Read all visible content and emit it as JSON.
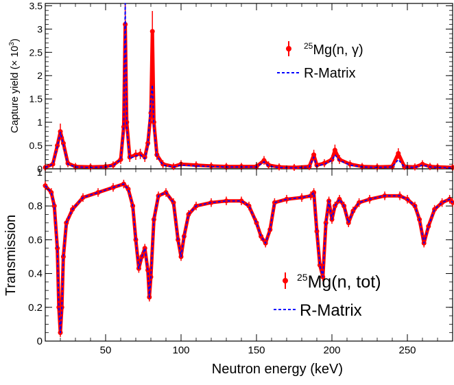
{
  "colors": {
    "data": "#ff0000",
    "fit": "#0000ff",
    "axis": "#000000"
  },
  "xaxis": {
    "label": "Neutron energy (keV)",
    "range": [
      10,
      280
    ],
    "ticks": [
      50,
      100,
      150,
      200,
      250
    ]
  },
  "legend_data_icon": "red-circle-with-error-bar",
  "legend_fit_icon": "blue-dashed-line",
  "chart_data": [
    {
      "type": "line",
      "ylabel_main": "Capture yield (",
      "ylabel_times": "×",
      "ylabel_base": "10",
      "ylabel_exp": "3",
      "ylabel_close": ")",
      "ylim": [
        0,
        3.55
      ],
      "yticks": [
        "0",
        "0.5",
        "1",
        "1.5",
        "2",
        "2.5",
        "3",
        "3.5"
      ],
      "legend_position": "top-right",
      "legend": [
        {
          "mass": "25",
          "label": "Mg(n, γ)"
        },
        {
          "label": "R-Matrix"
        }
      ],
      "series": [
        {
          "style": "markers",
          "x": [
            10,
            15,
            18,
            20,
            22,
            25,
            30,
            40,
            50,
            55,
            60,
            62,
            63,
            64,
            66,
            70,
            73,
            76,
            78,
            80,
            81,
            82,
            84,
            88,
            95,
            100,
            110,
            120,
            130,
            140,
            150,
            155,
            158,
            165,
            175,
            185,
            188,
            190,
            195,
            200,
            202,
            205,
            212,
            220,
            230,
            240,
            244,
            248,
            255,
            260,
            265,
            270,
            280
          ],
          "y": [
            0.03,
            0.1,
            0.5,
            0.8,
            0.55,
            0.12,
            0.05,
            0.04,
            0.05,
            0.08,
            0.2,
            0.9,
            3.1,
            1.0,
            0.25,
            0.3,
            0.32,
            0.25,
            0.55,
            1.2,
            2.95,
            1.0,
            0.3,
            0.1,
            0.05,
            0.1,
            0.08,
            0.06,
            0.05,
            0.05,
            0.05,
            0.18,
            0.08,
            0.04,
            0.03,
            0.05,
            0.3,
            0.08,
            0.12,
            0.2,
            0.4,
            0.2,
            0.1,
            0.05,
            0.04,
            0.05,
            0.33,
            0.05,
            0.04,
            0.1,
            0.05,
            0.04,
            0.03
          ]
        },
        {
          "style": "dashed",
          "x": [
            10,
            15,
            18,
            20,
            22,
            25,
            30,
            40,
            50,
            55,
            60,
            62,
            63,
            64,
            66,
            70,
            73,
            76,
            78,
            80,
            81,
            82,
            84,
            88,
            95,
            100,
            110,
            120,
            130,
            140,
            150,
            155,
            158,
            165,
            175,
            185,
            188,
            190,
            195,
            200,
            202,
            205,
            212,
            220,
            230,
            240,
            244,
            248,
            255,
            260,
            265,
            270,
            280
          ],
          "y": [
            0.03,
            0.1,
            0.48,
            0.78,
            0.52,
            0.1,
            0.04,
            0.03,
            0.04,
            0.07,
            0.2,
            0.9,
            3.55,
            0.9,
            0.22,
            0.28,
            0.3,
            0.22,
            0.5,
            1.5,
            1.8,
            0.9,
            0.28,
            0.08,
            0.04,
            0.08,
            0.06,
            0.05,
            0.04,
            0.04,
            0.04,
            0.15,
            0.06,
            0.03,
            0.02,
            0.04,
            0.25,
            0.06,
            0.1,
            0.18,
            0.3,
            0.18,
            0.08,
            0.04,
            0.03,
            0.04,
            0.2,
            0.04,
            0.03,
            0.08,
            0.04,
            0.03,
            0.02
          ]
        }
      ]
    },
    {
      "type": "line",
      "ylabel": "Transmission",
      "ylim": [
        0,
        1.02
      ],
      "yticks": [
        "0",
        "0.2",
        "0.4",
        "0.6",
        "0.8",
        "1"
      ],
      "legend_position": "bottom-right",
      "legend": [
        {
          "mass": "25",
          "label": "Mg(n, tot)"
        },
        {
          "label": "R-Matrix"
        }
      ],
      "series": [
        {
          "style": "markers",
          "x": [
            10,
            14,
            16,
            18,
            19,
            20,
            21,
            22,
            24,
            28,
            35,
            45,
            55,
            62,
            65,
            68,
            70,
            72,
            74,
            76,
            78,
            79,
            80,
            82,
            85,
            90,
            95,
            98,
            100,
            102,
            105,
            110,
            120,
            130,
            140,
            145,
            150,
            153,
            156,
            159,
            162,
            170,
            180,
            186,
            188,
            190,
            192,
            194,
            196,
            198,
            200,
            202,
            205,
            208,
            211,
            214,
            218,
            225,
            235,
            245,
            250,
            255,
            258,
            261,
            264,
            268,
            273,
            278,
            280
          ],
          "y": [
            0.92,
            0.88,
            0.8,
            0.55,
            0.2,
            0.05,
            0.2,
            0.5,
            0.7,
            0.78,
            0.85,
            0.88,
            0.91,
            0.93,
            0.9,
            0.8,
            0.6,
            0.43,
            0.5,
            0.55,
            0.42,
            0.26,
            0.38,
            0.72,
            0.86,
            0.88,
            0.82,
            0.6,
            0.5,
            0.62,
            0.75,
            0.8,
            0.82,
            0.83,
            0.83,
            0.8,
            0.7,
            0.62,
            0.58,
            0.66,
            0.82,
            0.84,
            0.85,
            0.86,
            0.88,
            0.65,
            0.45,
            0.38,
            0.7,
            0.83,
            0.72,
            0.8,
            0.84,
            0.8,
            0.7,
            0.77,
            0.82,
            0.84,
            0.86,
            0.86,
            0.84,
            0.8,
            0.72,
            0.58,
            0.68,
            0.78,
            0.82,
            0.84,
            0.82
          ]
        },
        {
          "style": "dashed",
          "x": [
            10,
            14,
            16,
            18,
            19,
            20,
            21,
            22,
            24,
            28,
            35,
            45,
            55,
            62,
            65,
            68,
            70,
            72,
            74,
            76,
            78,
            79,
            80,
            82,
            85,
            90,
            95,
            98,
            100,
            102,
            105,
            110,
            120,
            130,
            140,
            145,
            150,
            153,
            156,
            159,
            162,
            170,
            180,
            186,
            188,
            190,
            192,
            194,
            196,
            198,
            200,
            202,
            205,
            208,
            211,
            214,
            218,
            225,
            235,
            245,
            250,
            255,
            258,
            261,
            264,
            268,
            273,
            278,
            280
          ],
          "y": [
            0.92,
            0.88,
            0.8,
            0.55,
            0.2,
            0.05,
            0.2,
            0.5,
            0.7,
            0.78,
            0.85,
            0.88,
            0.91,
            0.93,
            0.9,
            0.8,
            0.6,
            0.43,
            0.5,
            0.55,
            0.42,
            0.26,
            0.38,
            0.72,
            0.86,
            0.88,
            0.82,
            0.6,
            0.5,
            0.62,
            0.75,
            0.8,
            0.82,
            0.83,
            0.83,
            0.8,
            0.7,
            0.62,
            0.58,
            0.66,
            0.82,
            0.84,
            0.85,
            0.86,
            0.88,
            0.65,
            0.45,
            0.38,
            0.7,
            0.83,
            0.72,
            0.8,
            0.84,
            0.8,
            0.7,
            0.77,
            0.82,
            0.84,
            0.86,
            0.86,
            0.84,
            0.8,
            0.72,
            0.58,
            0.68,
            0.78,
            0.82,
            0.84,
            0.82
          ]
        }
      ]
    }
  ]
}
